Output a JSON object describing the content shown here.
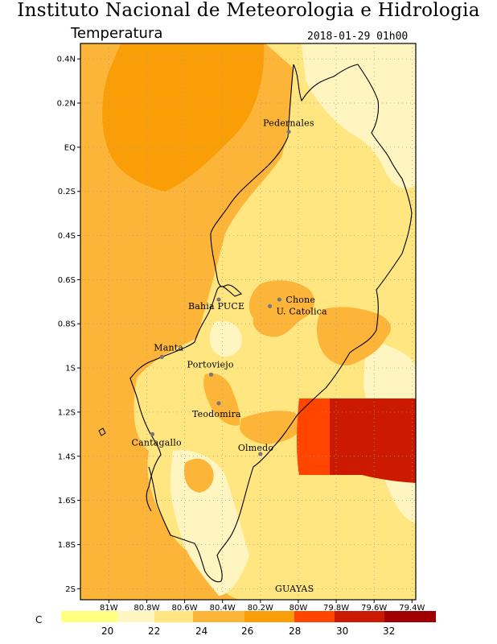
{
  "header": {
    "title": "Instituto Nacional de Meteorologia e Hidrologia",
    "subtitle": "Temperatura",
    "datetime": "2018-01-29 01h00"
  },
  "map": {
    "y_ticks": [
      "0.4N",
      "0.2N",
      "EQ",
      "0.2S",
      "0.4S",
      "0.6S",
      "0.8S",
      "1S",
      "1.2S",
      "1.4S",
      "1.6S",
      "1.8S",
      "2S"
    ],
    "x_ticks": [
      "81W",
      "80.8W",
      "80.6W",
      "80.4W",
      "80.2W",
      "80W",
      "79.8W",
      "79.6W",
      "79.4W"
    ],
    "lat_range": [
      0.47,
      -2.05
    ],
    "lon_range": [
      81.15,
      79.38
    ],
    "region_label": "GUAYAS",
    "stations": [
      {
        "name": "Pedernales",
        "lon": 80.05,
        "lat": 0.07
      },
      {
        "name": "Chone",
        "lon": 80.1,
        "lat": -0.69
      },
      {
        "name": "U. Catolica",
        "lon": 80.15,
        "lat": -0.72
      },
      {
        "name": "Bahia PUCE",
        "lon": 80.42,
        "lat": -0.69
      },
      {
        "name": "Manta",
        "lon": 80.72,
        "lat": -0.95
      },
      {
        "name": "Portoviejo",
        "lon": 80.46,
        "lat": -1.03
      },
      {
        "name": "Teodomira",
        "lon": 80.42,
        "lat": -1.16
      },
      {
        "name": "Cantagallo",
        "lon": 80.77,
        "lat": -1.3
      },
      {
        "name": "Olmedo",
        "lon": 80.2,
        "lat": -1.39
      }
    ]
  },
  "legend": {
    "unit": "C",
    "labels": [
      "20",
      "22",
      "24",
      "26",
      "28",
      "30",
      "32"
    ],
    "colors": {
      "lt20": "#ffff80",
      "c20_22": "#fff5c0",
      "c22_24": "#ffe680",
      "c24_26": "#fcb439",
      "c26_28": "#fa9e08",
      "c28_30": "#ff4500",
      "c30_32": "#cc1a00",
      "gt32": "#a00000"
    }
  }
}
